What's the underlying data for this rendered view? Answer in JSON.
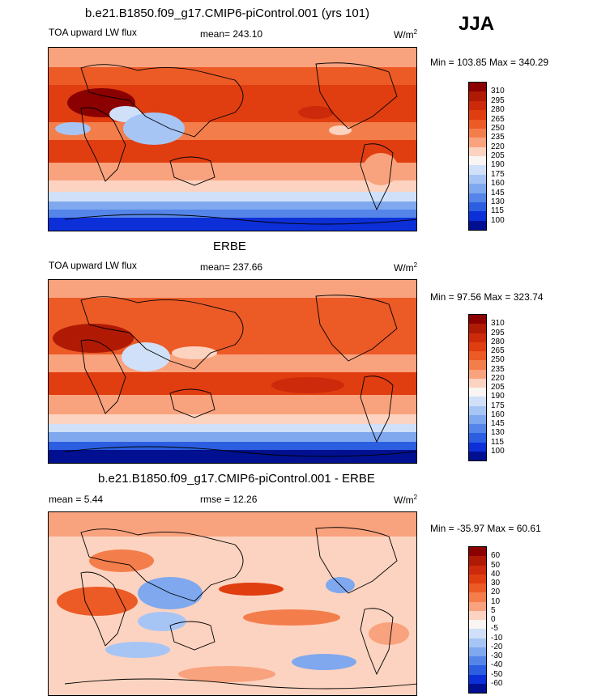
{
  "season": "JJA",
  "unit_main": "W/m",
  "unit_sup": "2",
  "panels": [
    {
      "title": "b.e21.B1850.f09_g17.CMIP6-piControl.001 (yrs 101)",
      "left_label": "TOA upward LW flux",
      "center_label": "mean= 243.10",
      "minmax": "Min = 103.85 Max = 340.29"
    },
    {
      "title": "ERBE",
      "left_label": "TOA upward LW flux",
      "center_label": "mean= 237.66",
      "minmax": "Min =  97.56 Max = 323.74"
    },
    {
      "title": "b.e21.B1850.f09_g17.CMIP6-piControl.001 - ERBE",
      "left_label": "mean =   5.44",
      "center_label": "rmse =  12.26",
      "minmax": "Min = -35.97 Max =  60.61"
    }
  ],
  "chart_data": [
    {
      "type": "heatmap",
      "title": "b.e21.B1850.f09_g17.CMIP6-piControl.001 (yrs 101)",
      "field": "TOA upward LW flux",
      "mean": 243.1,
      "min": 103.85,
      "max": 340.29,
      "colorbar_levels": [
        "310",
        "295",
        "280",
        "265",
        "250",
        "235",
        "220",
        "205",
        "190",
        "175",
        "160",
        "145",
        "130",
        "115",
        "100"
      ],
      "colorbar_colors": [
        "#8b0000",
        "#b01a05",
        "#cc2a0a",
        "#e03e10",
        "#ec5a26",
        "#f47e4b",
        "#f9a27e",
        "#fcd3c0",
        "#f8f5f3",
        "#cfe0f8",
        "#a6c5f5",
        "#7fa8ee",
        "#5585e8",
        "#2b5ee0",
        "#0c2fd8",
        "#001090"
      ]
    },
    {
      "type": "heatmap",
      "title": "ERBE",
      "field": "TOA upward LW flux",
      "mean": 237.66,
      "min": 97.56,
      "max": 323.74,
      "colorbar_levels": [
        "310",
        "295",
        "280",
        "265",
        "250",
        "235",
        "220",
        "205",
        "190",
        "175",
        "160",
        "145",
        "130",
        "115",
        "100"
      ],
      "colorbar_colors": [
        "#8b0000",
        "#b01a05",
        "#cc2a0a",
        "#e03e10",
        "#ec5a26",
        "#f47e4b",
        "#f9a27e",
        "#fcd3c0",
        "#f8f5f3",
        "#cfe0f8",
        "#a6c5f5",
        "#7fa8ee",
        "#5585e8",
        "#2b5ee0",
        "#0c2fd8",
        "#001090"
      ]
    },
    {
      "type": "heatmap",
      "title": "b.e21.B1850.f09_g17.CMIP6-piControl.001 - ERBE",
      "mean": 5.44,
      "rmse": 12.26,
      "min": -35.97,
      "max": 60.61,
      "colorbar_levels": [
        "60",
        "50",
        "40",
        "30",
        "20",
        "10",
        "5",
        "0",
        "-5",
        "-10",
        "-20",
        "-30",
        "-40",
        "-50",
        "-60"
      ],
      "colorbar_colors": [
        "#8b0000",
        "#b01a05",
        "#cc2a0a",
        "#e03e10",
        "#ec5a26",
        "#f47e4b",
        "#f9a27e",
        "#fcd3c0",
        "#f8f5f3",
        "#cfe0f8",
        "#a6c5f5",
        "#7fa8ee",
        "#5585e8",
        "#2b5ee0",
        "#0c2fd8",
        "#001090"
      ]
    }
  ]
}
